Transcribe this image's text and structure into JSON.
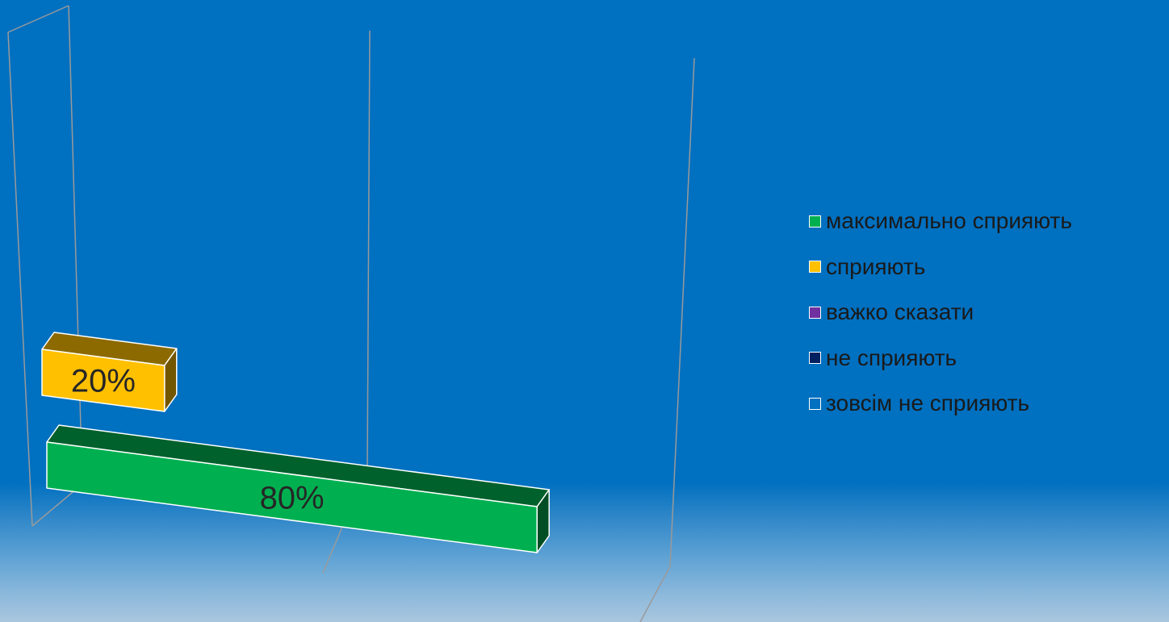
{
  "chart_data": {
    "type": "bar",
    "orientation": "horizontal",
    "style": "3d",
    "title": "",
    "categories": [
      ""
    ],
    "series": [
      {
        "name": "максимально сприяють",
        "color": "#00b050",
        "values": [
          80
        ],
        "label": "80%"
      },
      {
        "name": "сприяють",
        "color": "#ffc000",
        "values": [
          20
        ],
        "label": "20%"
      },
      {
        "name": "важко сказати",
        "color": "#7030a0",
        "values": [
          0
        ]
      },
      {
        "name": "не сприяють",
        "color": "#002060",
        "values": [
          0
        ]
      },
      {
        "name": "зовсім не сприяють",
        "color": "#0070c0",
        "values": [
          0
        ]
      }
    ],
    "xlim": [
      0,
      100
    ],
    "gridlines": true,
    "legend_position": "right"
  }
}
